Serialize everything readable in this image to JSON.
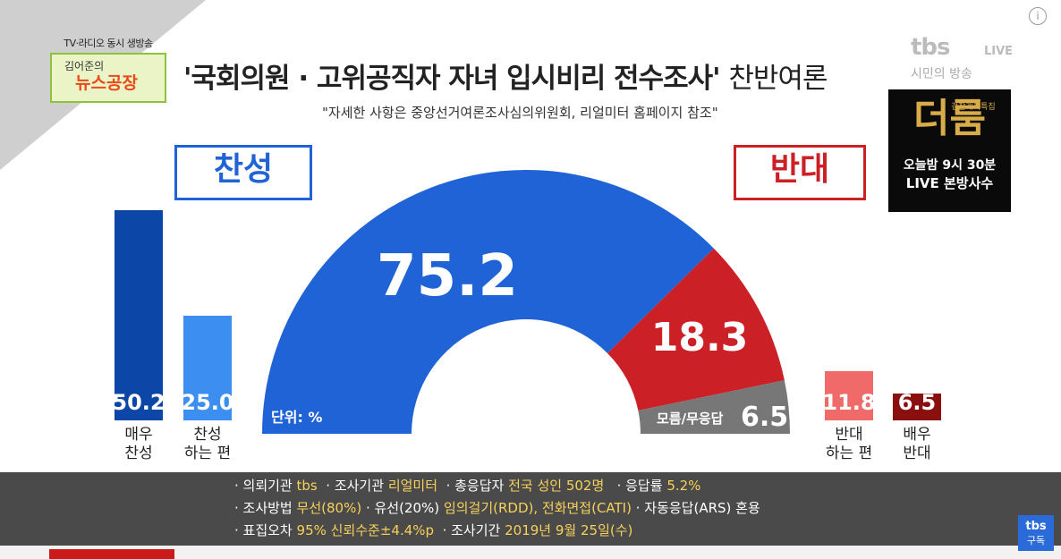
{
  "program": {
    "top_line": "TV·라디오 동시 생방송",
    "host": "김어준의",
    "name": "뉴스공장"
  },
  "broadcaster": {
    "logo": "tbs",
    "live": "LIVE",
    "slogan": "시민의 방송"
  },
  "promo": {
    "small": "검찰개혁특집",
    "big": "더룸",
    "line1": "오늘밤 9시 30분",
    "line2": "LIVE 본방사수"
  },
  "info_icon": "i",
  "subscribe": {
    "logo": "tbs",
    "label": "구독"
  },
  "colors": {
    "support": "#1f63d6",
    "oppose": "#cc2027",
    "unknown": "#777777"
  },
  "chart_data": {
    "type": "pie",
    "title_main": "'국회의원 · 고위공직자 자녀 입시비리 전수조사'",
    "title_sub": "찬반여론",
    "note": "\"자세한 사항은 중앙선거여론조사심의위원회, 리얼미터 홈페이지 참조\"",
    "unit_label": "단위: %",
    "support_label": "찬성",
    "oppose_label": "반대",
    "slices": [
      {
        "name": "찬성",
        "value": 75.2,
        "color": "#1f63d6"
      },
      {
        "name": "반대",
        "value": 18.3,
        "color": "#cc2027"
      },
      {
        "name": "모름/무응답",
        "value": 6.5,
        "color": "#777777"
      }
    ],
    "support_bars": [
      {
        "label": "매우 찬성",
        "value": 50.2,
        "color": "#0c47a8"
      },
      {
        "label": "찬성 하는 편",
        "value": 25.0,
        "color": "#3c8ff0"
      }
    ],
    "oppose_bars": [
      {
        "label": "반대 하는 편",
        "value": 11.8,
        "color": "#f06a6a"
      },
      {
        "label": "배우 반대",
        "value": 6.5,
        "color": "#8a1010"
      }
    ]
  },
  "survey_info": {
    "row1": [
      {
        "k": "· 의뢰기관",
        "v": "tbs"
      },
      {
        "k": "· 조사기관",
        "v": "리얼미터"
      },
      {
        "k": "· 총응답자",
        "v": "전국 성인 502명"
      },
      {
        "k": "· 응답률",
        "v": "5.2%"
      }
    ],
    "row2": [
      {
        "k": "· 조사방법",
        "v": "무선(80%)"
      },
      {
        "k": "· 유선(20%)",
        "v": "임의걸기(RDD), 전화면접(CATI)"
      },
      {
        "k": "· 자동응답(ARS) 혼용",
        "v": ""
      }
    ],
    "row3": [
      {
        "k": "· 표집오차",
        "v": "95% 신뢰수준±4.4%p"
      },
      {
        "k": "· 조사기간",
        "v": "2019년 9월 25일(수)"
      }
    ]
  }
}
